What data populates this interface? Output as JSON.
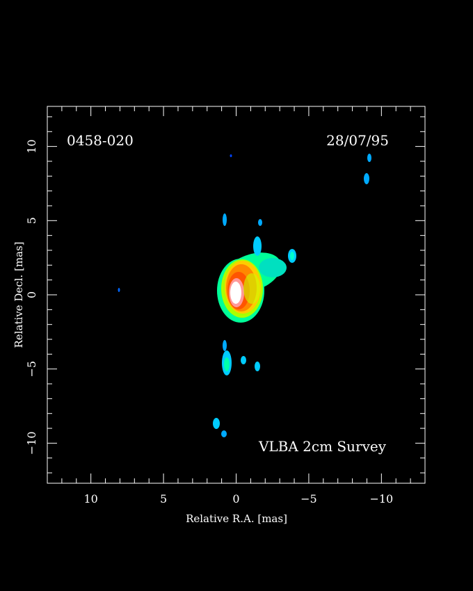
{
  "image": {
    "source_name": "0458-020",
    "date": "28/07/95",
    "survey_label": "VLBA 2cm Survey",
    "colormap": [
      "#0000ff",
      "#00ccff",
      "#00ff99",
      "#aaff00",
      "#ffcc00",
      "#ff8800",
      "#ff3300",
      "#ffffff"
    ]
  },
  "axes": {
    "xlabel": "Relative R.A. [mas]",
    "ylabel": "Relative Decl. [mas]",
    "xlim": [
      13,
      -13
    ],
    "ylim": [
      -12.7,
      12.7
    ],
    "x_major_ticks": [
      10,
      5,
      0,
      -5,
      -10
    ],
    "x_tick_labels": [
      "10",
      "5",
      "0",
      "−5",
      "−10"
    ],
    "y_major_ticks": [
      10,
      5,
      0,
      -5,
      -10
    ],
    "y_tick_labels": [
      "10",
      "5",
      "0",
      "−5",
      "−10"
    ],
    "minor_step": 1
  }
}
